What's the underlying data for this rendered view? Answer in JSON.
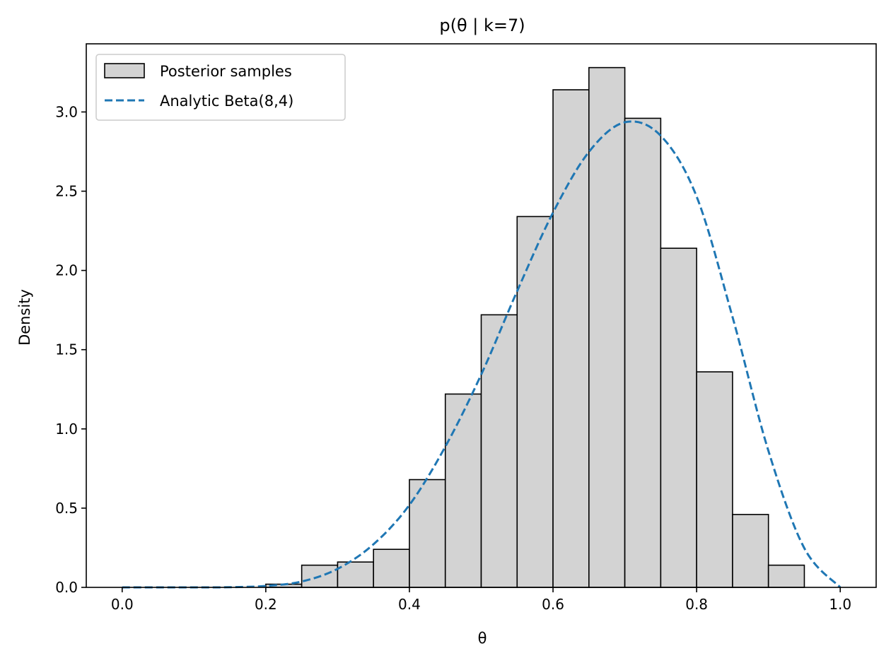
{
  "chart_data": {
    "type": "histogram",
    "title": "p(θ | k=7)",
    "xlabel": "θ",
    "ylabel": "Density",
    "xlim": [
      -0.05,
      1.05
    ],
    "ylim": [
      0,
      3.43
    ],
    "xticks": [
      0.0,
      0.2,
      0.4,
      0.6,
      0.8,
      1.0
    ],
    "xtick_labels": [
      "0.0",
      "0.2",
      "0.4",
      "0.6",
      "0.8",
      "1.0"
    ],
    "yticks": [
      0.0,
      0.5,
      1.0,
      1.5,
      2.0,
      2.5,
      3.0
    ],
    "ytick_labels": [
      "0.0",
      "0.5",
      "1.0",
      "1.5",
      "2.0",
      "2.5",
      "3.0"
    ],
    "grid": false,
    "legend_position": "top-left",
    "series": [
      {
        "name": "Posterior samples",
        "kind": "histogram",
        "color": "#d3d3d3",
        "edgecolor": "#000000",
        "bins": [
          {
            "x0": 0.2,
            "x1": 0.25,
            "value": 0.02
          },
          {
            "x0": 0.25,
            "x1": 0.3,
            "value": 0.14
          },
          {
            "x0": 0.3,
            "x1": 0.35,
            "value": 0.16
          },
          {
            "x0": 0.35,
            "x1": 0.4,
            "value": 0.24
          },
          {
            "x0": 0.4,
            "x1": 0.45,
            "value": 0.68
          },
          {
            "x0": 0.45,
            "x1": 0.5,
            "value": 1.22
          },
          {
            "x0": 0.5,
            "x1": 0.55,
            "value": 1.72
          },
          {
            "x0": 0.55,
            "x1": 0.6,
            "value": 2.34
          },
          {
            "x0": 0.6,
            "x1": 0.65,
            "value": 3.14
          },
          {
            "x0": 0.65,
            "x1": 0.7,
            "value": 3.28
          },
          {
            "x0": 0.7,
            "x1": 0.75,
            "value": 2.96
          },
          {
            "x0": 0.75,
            "x1": 0.8,
            "value": 2.14
          },
          {
            "x0": 0.8,
            "x1": 0.85,
            "value": 1.36
          },
          {
            "x0": 0.85,
            "x1": 0.9,
            "value": 0.46
          },
          {
            "x0": 0.9,
            "x1": 0.95,
            "value": 0.14
          }
        ]
      },
      {
        "name": "Analytic Beta(8,4)",
        "kind": "line",
        "style": "dashed",
        "color": "#1f77b4",
        "x": [
          0.0,
          0.05,
          0.1,
          0.15,
          0.2,
          0.25,
          0.3,
          0.35,
          0.4,
          0.45,
          0.5,
          0.55,
          0.6,
          0.65,
          0.7,
          0.75,
          0.8,
          0.85,
          0.9,
          0.95,
          1.0
        ],
        "y": [
          0.0,
          0.0,
          0.0,
          0.001,
          0.009,
          0.037,
          0.117,
          0.272,
          0.52,
          0.888,
          1.343,
          1.869,
          2.365,
          2.748,
          2.935,
          2.85,
          2.466,
          1.706,
          0.861,
          0.247,
          0.0
        ]
      }
    ]
  }
}
